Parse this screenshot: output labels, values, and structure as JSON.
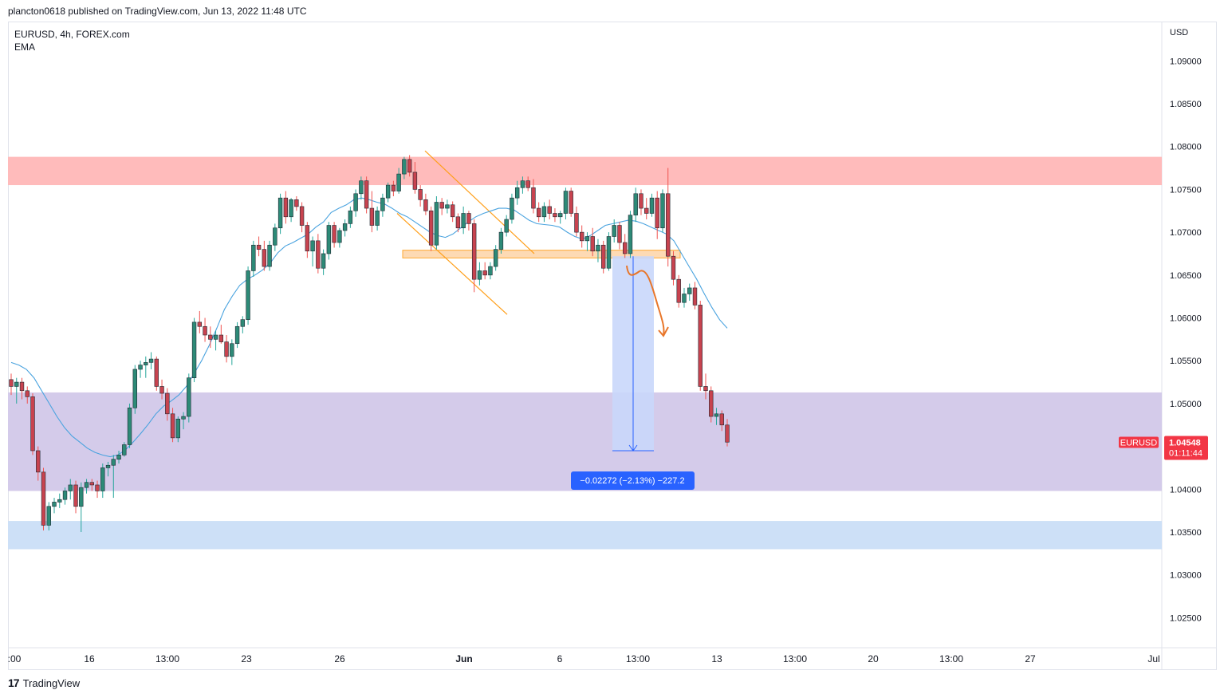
{
  "header": {
    "published_text": "plancton0618 published on TradingView.com, Jun 13, 2022 11:48 UTC"
  },
  "legend": {
    "symbol_line": "EURUSD, 4h, FOREX.com",
    "indicator": "EMA"
  },
  "footer": {
    "logo_mark": "17",
    "logo_text": "TradingView"
  },
  "colors": {
    "up": "#26a69a",
    "down": "#ef5350",
    "candle_body_up": "#2d8a77",
    "candle_body_down": "#c8434f",
    "ema": "#4aa3df",
    "resistance_zone": "#ffbbbb",
    "support_zone_purple": "#d4cbea",
    "support_zone_blue": "#cde0f7",
    "orange": "#ff9f1a",
    "measure_fill": "#c9d7fb",
    "measure_label": "#2962ff",
    "price_tag": "#f23645"
  },
  "chart_data": {
    "type": "candlestick",
    "symbol": "EURUSD",
    "timeframe": "4h",
    "currency": "USD",
    "y_ticks": [
      "1.09000",
      "1.08500",
      "1.08000",
      "1.07500",
      "1.07000",
      "1.06500",
      "1.06000",
      "1.05500",
      "1.05000",
      "1.04500",
      "1.04000",
      "1.03500",
      "1.03000",
      "1.02500"
    ],
    "ylim": [
      1.0215,
      1.0945
    ],
    "x_ticks": [
      ":00",
      "16",
      "13:00",
      "23",
      "26",
      "Jun",
      "6",
      "13:00",
      "13",
      "13:00",
      "20",
      "13:00",
      "27",
      "Jul"
    ],
    "last_price": {
      "label": "EURUSD",
      "value": "1.04548",
      "countdown": "01:11:44"
    },
    "measurement": {
      "text": "−0.02272 (−2.13%) −227.2",
      "from": 1.0672,
      "to": 1.0445
    },
    "zones": [
      {
        "name": "resistance",
        "from": 1.0755,
        "to": 1.0788
      },
      {
        "name": "support-purple",
        "from": 1.0398,
        "to": 1.0513
      },
      {
        "name": "support-blue",
        "from": 1.033,
        "to": 1.0363
      },
      {
        "name": "orange-level",
        "from": 1.067,
        "to": 1.0679
      }
    ],
    "candles": [
      [
        1.0528,
        1.0535,
        1.051,
        1.052
      ],
      [
        1.052,
        1.053,
        1.05,
        1.0525
      ],
      [
        1.0525,
        1.053,
        1.0505,
        1.0515
      ],
      [
        1.0515,
        1.052,
        1.05,
        1.0508
      ],
      [
        1.0508,
        1.0512,
        1.044,
        1.0445
      ],
      [
        1.0445,
        1.045,
        1.041,
        1.042
      ],
      [
        1.042,
        1.0425,
        1.0352,
        1.0358
      ],
      [
        1.0358,
        1.0385,
        1.0352,
        1.038
      ],
      [
        1.038,
        1.039,
        1.0372,
        1.0385
      ],
      [
        1.0385,
        1.0395,
        1.0378,
        1.0388
      ],
      [
        1.0388,
        1.0402,
        1.0382,
        1.0398
      ],
      [
        1.0398,
        1.0412,
        1.0388,
        1.0405
      ],
      [
        1.0405,
        1.041,
        1.0372,
        1.038
      ],
      [
        1.038,
        1.0408,
        1.035,
        1.0402
      ],
      [
        1.0402,
        1.0412,
        1.0395,
        1.0408
      ],
      [
        1.0408,
        1.0412,
        1.0398,
        1.0405
      ],
      [
        1.0405,
        1.041,
        1.039,
        1.0398
      ],
      [
        1.0398,
        1.043,
        1.039,
        1.0425
      ],
      [
        1.0425,
        1.0432,
        1.0415,
        1.0428
      ],
      [
        1.0428,
        1.044,
        1.039,
        1.0435
      ],
      [
        1.0435,
        1.0445,
        1.043,
        1.044
      ],
      [
        1.044,
        1.0455,
        1.0438,
        1.0452
      ],
      [
        1.0452,
        1.05,
        1.0448,
        1.0495
      ],
      [
        1.0495,
        1.0545,
        1.0488,
        1.054
      ],
      [
        1.054,
        1.055,
        1.053,
        1.0545
      ],
      [
        1.0545,
        1.0555,
        1.053,
        1.0548
      ],
      [
        1.0548,
        1.056,
        1.054,
        1.0552
      ],
      [
        1.0552,
        1.0555,
        1.0515,
        1.052
      ],
      [
        1.052,
        1.0528,
        1.0505,
        1.0512
      ],
      [
        1.0512,
        1.0518,
        1.048,
        1.0488
      ],
      [
        1.0488,
        1.0495,
        1.0455,
        1.046
      ],
      [
        1.046,
        1.0485,
        1.0455,
        1.0482
      ],
      [
        1.0482,
        1.049,
        1.047,
        1.0485
      ],
      [
        1.0485,
        1.0535,
        1.0478,
        1.053
      ],
      [
        1.053,
        1.06,
        1.0525,
        1.0595
      ],
      [
        1.0595,
        1.0608,
        1.0582,
        1.059
      ],
      [
        1.059,
        1.06,
        1.0572,
        1.058
      ],
      [
        1.058,
        1.059,
        1.0565,
        1.0575
      ],
      [
        1.0575,
        1.0585,
        1.0562,
        1.058
      ],
      [
        1.058,
        1.0592,
        1.057,
        1.0572
      ],
      [
        1.0572,
        1.058,
        1.0548,
        1.0555
      ],
      [
        1.0555,
        1.0575,
        1.0545,
        1.057
      ],
      [
        1.057,
        1.0595,
        1.0565,
        1.059
      ],
      [
        1.059,
        1.0602,
        1.0582,
        1.0598
      ],
      [
        1.0598,
        1.066,
        1.0592,
        1.0655
      ],
      [
        1.0655,
        1.069,
        1.0648,
        1.0685
      ],
      [
        1.0685,
        1.0695,
        1.0672,
        1.068
      ],
      [
        1.068,
        1.069,
        1.0655,
        1.066
      ],
      [
        1.066,
        1.069,
        1.0655,
        1.0685
      ],
      [
        1.0685,
        1.071,
        1.0678,
        1.0705
      ],
      [
        1.0705,
        1.0745,
        1.0698,
        1.074
      ],
      [
        1.074,
        1.0748,
        1.071,
        1.0718
      ],
      [
        1.0718,
        1.074,
        1.0712,
        1.0738
      ],
      [
        1.0738,
        1.0742,
        1.0725,
        1.073
      ],
      [
        1.073,
        1.0735,
        1.07,
        1.0708
      ],
      [
        1.0708,
        1.0712,
        1.067,
        1.0678
      ],
      [
        1.0678,
        1.0695,
        1.066,
        1.069
      ],
      [
        1.069,
        1.0698,
        1.0652,
        1.0658
      ],
      [
        1.0658,
        1.068,
        1.065,
        1.0675
      ],
      [
        1.0675,
        1.0712,
        1.0668,
        1.0708
      ],
      [
        1.0708,
        1.0712,
        1.0682,
        1.0688
      ],
      [
        1.0688,
        1.0705,
        1.0682,
        1.0702
      ],
      [
        1.0702,
        1.0715,
        1.0695,
        1.071
      ],
      [
        1.071,
        1.073,
        1.0705,
        1.0725
      ],
      [
        1.0725,
        1.075,
        1.0718,
        1.0745
      ],
      [
        1.0745,
        1.0765,
        1.0738,
        1.076
      ],
      [
        1.076,
        1.0765,
        1.0722,
        1.0728
      ],
      [
        1.0728,
        1.0748,
        1.07,
        1.0708
      ],
      [
        1.0708,
        1.073,
        1.0702,
        1.0725
      ],
      [
        1.0725,
        1.0745,
        1.0718,
        1.074
      ],
      [
        1.074,
        1.0758,
        1.0735,
        1.0755
      ],
      [
        1.0755,
        1.076,
        1.0742,
        1.0748
      ],
      [
        1.0748,
        1.0775,
        1.0745,
        1.0768
      ],
      [
        1.0768,
        1.0788,
        1.0762,
        1.0785
      ],
      [
        1.0785,
        1.079,
        1.0765,
        1.077
      ],
      [
        1.077,
        1.0782,
        1.0745,
        1.075
      ],
      [
        1.075,
        1.0755,
        1.073,
        1.0738
      ],
      [
        1.0738,
        1.0745,
        1.072,
        1.0725
      ],
      [
        1.0725,
        1.073,
        1.0678,
        1.0685
      ],
      [
        1.0685,
        1.0742,
        1.068,
        1.0735
      ],
      [
        1.0735,
        1.074,
        1.072,
        1.0728
      ],
      [
        1.0728,
        1.0738,
        1.0722,
        1.0732
      ],
      [
        1.0732,
        1.0736,
        1.0712,
        1.0718
      ],
      [
        1.0718,
        1.0722,
        1.07,
        1.0705
      ],
      [
        1.0705,
        1.073,
        1.0698,
        1.0722
      ],
      [
        1.0722,
        1.0725,
        1.0702,
        1.071
      ],
      [
        1.071,
        1.0715,
        1.063,
        1.0645
      ],
      [
        1.0645,
        1.0665,
        1.0638,
        1.0655
      ],
      [
        1.0655,
        1.0665,
        1.0645,
        1.065
      ],
      [
        1.065,
        1.0665,
        1.0645,
        1.066
      ],
      [
        1.066,
        1.0685,
        1.0655,
        1.068
      ],
      [
        1.068,
        1.0705,
        1.0675,
        1.07
      ],
      [
        1.07,
        1.072,
        1.0695,
        1.0715
      ],
      [
        1.0715,
        1.0745,
        1.071,
        1.074
      ],
      [
        1.074,
        1.076,
        1.0732,
        1.0752
      ],
      [
        1.0752,
        1.0765,
        1.0745,
        1.076
      ],
      [
        1.076,
        1.0765,
        1.0748,
        1.0752
      ],
      [
        1.0752,
        1.0762,
        1.0722,
        1.0728
      ],
      [
        1.0728,
        1.0735,
        1.0712,
        1.0718
      ],
      [
        1.0718,
        1.0735,
        1.0712,
        1.073
      ],
      [
        1.073,
        1.0738,
        1.0715,
        1.0722
      ],
      [
        1.0722,
        1.0728,
        1.0712,
        1.0718
      ],
      [
        1.0718,
        1.0725,
        1.071,
        1.0722
      ],
      [
        1.0722,
        1.0752,
        1.0715,
        1.0748
      ],
      [
        1.0748,
        1.0752,
        1.0718,
        1.0722
      ],
      [
        1.0722,
        1.073,
        1.0695,
        1.07
      ],
      [
        1.07,
        1.0708,
        1.0682,
        1.069
      ],
      [
        1.069,
        1.07,
        1.0678,
        1.0695
      ],
      [
        1.0695,
        1.0705,
        1.0672,
        1.0678
      ],
      [
        1.0678,
        1.0692,
        1.0665,
        1.0685
      ],
      [
        1.0685,
        1.069,
        1.0652,
        1.0658
      ],
      [
        1.0658,
        1.07,
        1.0655,
        1.0695
      ],
      [
        1.0695,
        1.0715,
        1.0688,
        1.0708
      ],
      [
        1.0708,
        1.0712,
        1.068,
        1.0688
      ],
      [
        1.0688,
        1.0698,
        1.067,
        1.0675
      ],
      [
        1.0675,
        1.0725,
        1.067,
        1.072
      ],
      [
        1.072,
        1.0752,
        1.0712,
        1.0745
      ],
      [
        1.0745,
        1.075,
        1.072,
        1.0728
      ],
      [
        1.0728,
        1.074,
        1.0715,
        1.0722
      ],
      [
        1.0722,
        1.0745,
        1.0718,
        1.074
      ],
      [
        1.074,
        1.0748,
        1.0692,
        1.0705
      ],
      [
        1.0705,
        1.075,
        1.07,
        1.0745
      ],
      [
        1.0745,
        1.0775,
        1.066,
        1.0672
      ],
      [
        1.0672,
        1.0678,
        1.0638,
        1.0645
      ],
      [
        1.0645,
        1.065,
        1.0612,
        1.0618
      ],
      [
        1.0618,
        1.0635,
        1.0612,
        1.0628
      ],
      [
        1.0628,
        1.064,
        1.062,
        1.0635
      ],
      [
        1.0635,
        1.0642,
        1.061,
        1.0615
      ],
      [
        1.0615,
        1.062,
        1.0515,
        1.052
      ],
      [
        1.052,
        1.0535,
        1.0505,
        1.0515
      ],
      [
        1.0515,
        1.052,
        1.0478,
        1.0485
      ],
      [
        1.0485,
        1.0495,
        1.0475,
        1.0488
      ],
      [
        1.0488,
        1.0492,
        1.0468,
        1.0475
      ],
      [
        1.0475,
        1.0482,
        1.045,
        1.0455
      ]
    ],
    "ema": [
      1.0548,
      1.0545,
      1.054,
      1.053,
      1.0515,
      1.05,
      1.0485,
      1.0472,
      1.0462,
      1.0455,
      1.0448,
      1.0443,
      1.044,
      1.0438,
      1.044,
      1.0446,
      1.0455,
      1.0465,
      1.0476,
      1.0488,
      1.0497,
      1.0503,
      1.051,
      1.052,
      1.0535,
      1.055,
      1.0568,
      1.0588,
      1.061,
      1.0625,
      1.0638,
      1.0645,
      1.065,
      1.0656,
      1.0664,
      1.0676,
      1.0684,
      1.0688,
      1.0693,
      1.0698,
      1.0706,
      1.0712,
      1.0723,
      1.0728,
      1.0732,
      1.0738,
      1.074,
      1.0738,
      1.0735,
      1.0733,
      1.0728,
      1.0722,
      1.0718,
      1.0712,
      1.0706,
      1.07,
      1.0696,
      1.0694,
      1.0698,
      1.0705,
      1.0712,
      1.0718,
      1.0722,
      1.0725,
      1.0728,
      1.0728,
      1.0726,
      1.072,
      1.0714,
      1.071,
      1.0709,
      1.0708,
      1.0706,
      1.07,
      1.0695,
      1.0692,
      1.0696,
      1.0702,
      1.0708,
      1.071,
      1.0712,
      1.0714,
      1.0713,
      1.071,
      1.0706,
      1.0702,
      1.0698,
      1.069,
      1.0675,
      1.066,
      1.0645,
      1.0628,
      1.0612,
      1.0598,
      1.0588
    ]
  }
}
